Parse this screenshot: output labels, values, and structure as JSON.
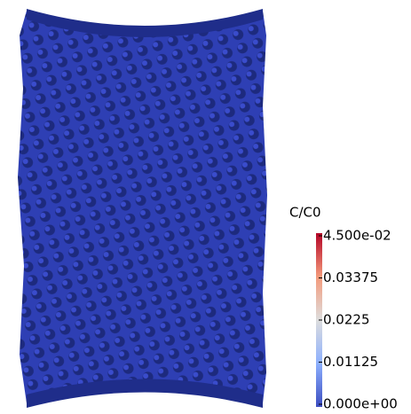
{
  "colorbar": {
    "title": "C/C0",
    "lim": [
      0,
      0.045
    ],
    "ticks": [
      {
        "value": 0.045,
        "label": "4.500e-02"
      },
      0.03375,
      0.0225,
      0.01125,
      {
        "value": 0,
        "label": "0.000e+00"
      }
    ]
  }
}
